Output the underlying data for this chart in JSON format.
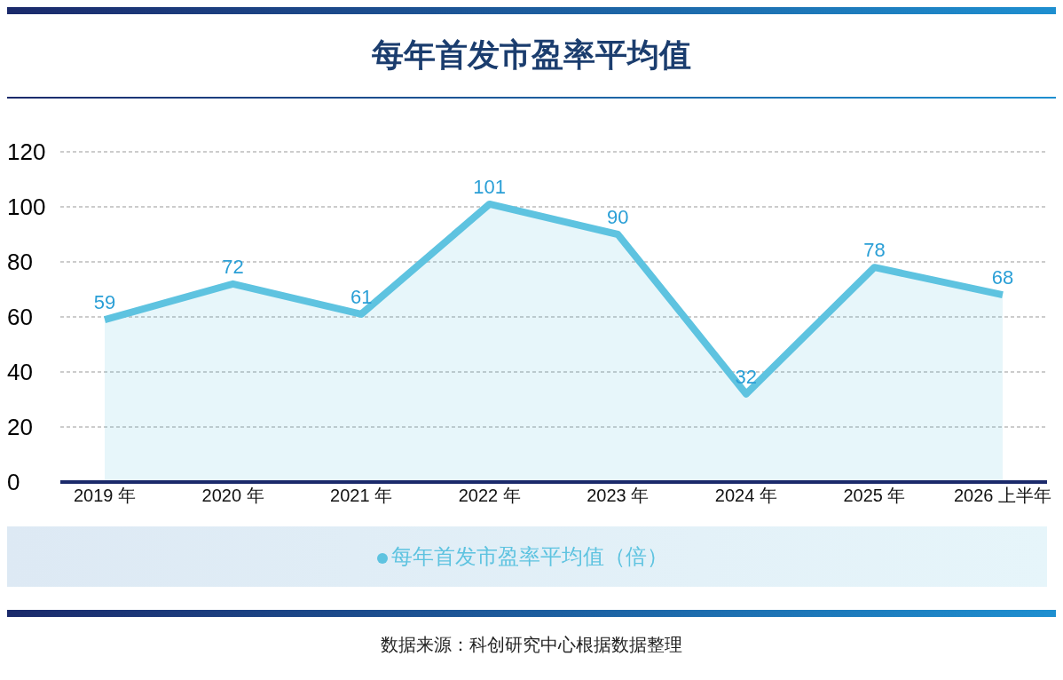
{
  "chart_data": {
    "type": "area",
    "title": "每年首发市盈率平均值",
    "categories": [
      "2019 年",
      "2020 年",
      "2021 年",
      "2022 年",
      "2023 年",
      "2024 年",
      "2025 年",
      "2026 上半年"
    ],
    "series": [
      {
        "name": "每年首发市盈率平均值（倍）",
        "color": "#5ec3e0",
        "values": [
          59,
          72,
          61,
          101,
          90,
          32,
          78,
          68
        ]
      }
    ],
    "ylim": [
      0,
      120
    ],
    "yticks": [
      0,
      20,
      40,
      60,
      80,
      100,
      120
    ],
    "grid": "y",
    "legend": "bottom",
    "data_labels": true,
    "annotations": [
      "数据来源：科创研究中心根据数据整理"
    ]
  }
}
